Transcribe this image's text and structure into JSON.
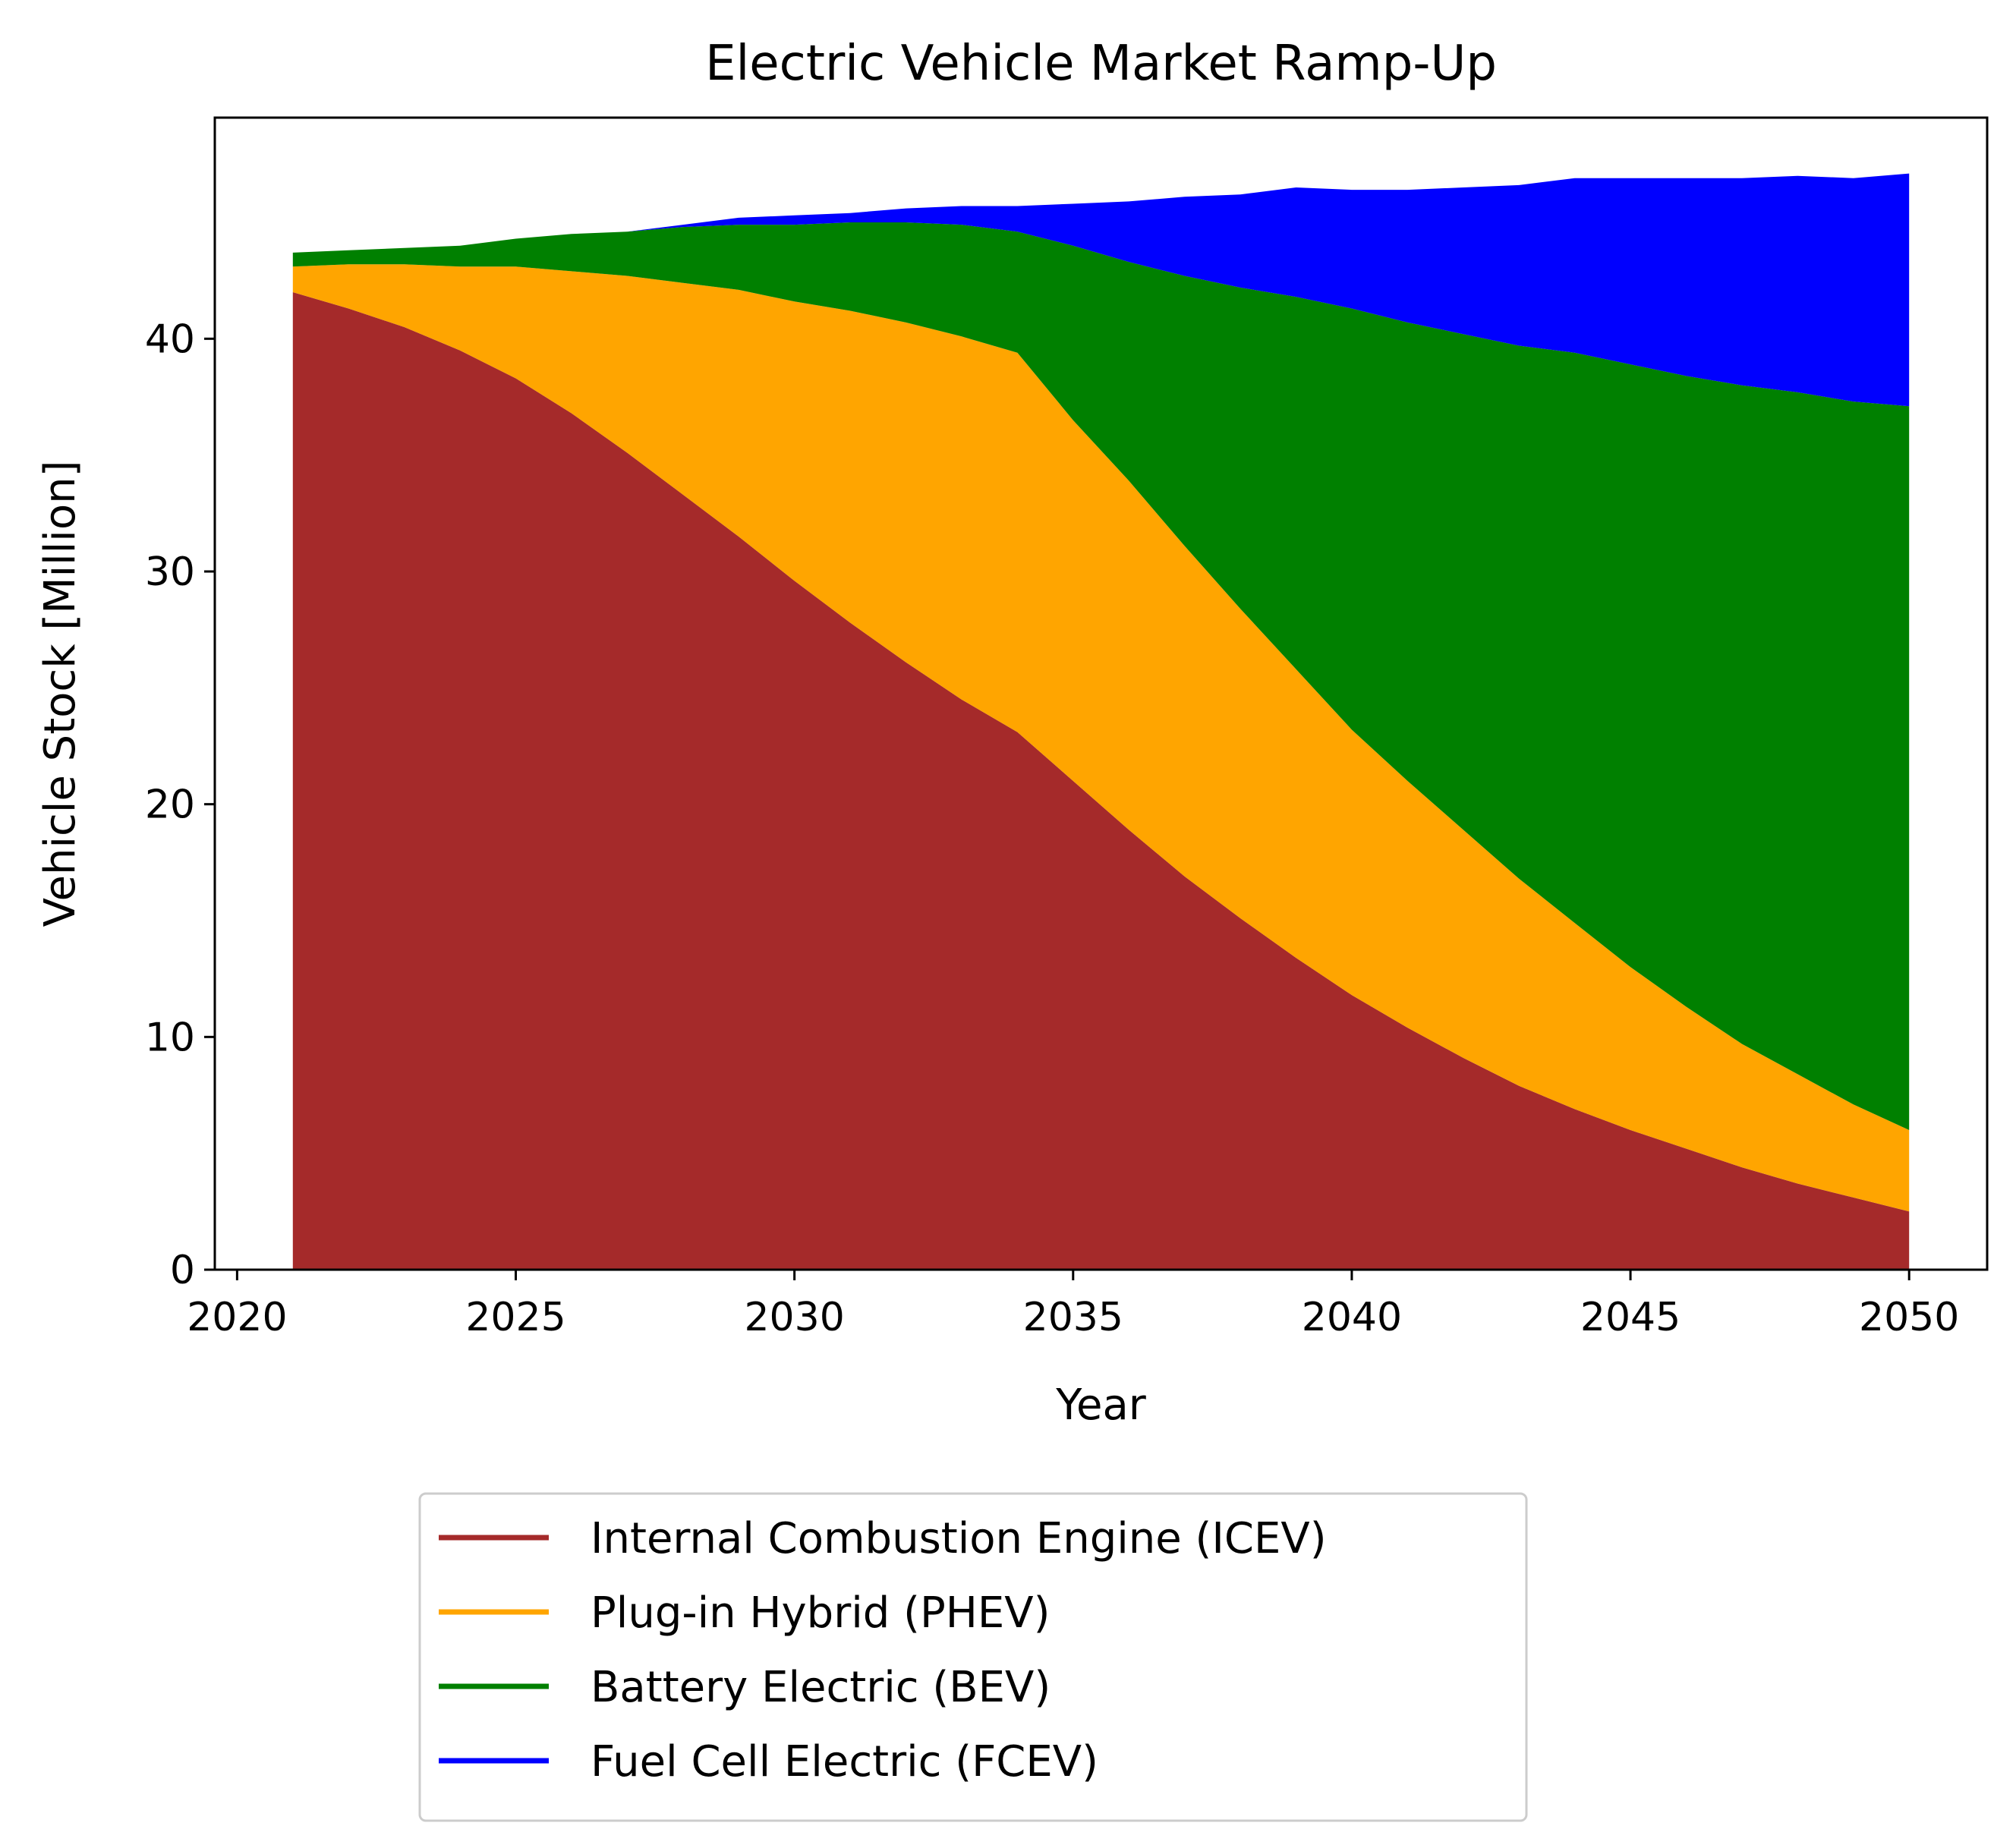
{
  "chart_data": {
    "type": "area",
    "stacked": true,
    "title": "Electric Vehicle Market Ramp-Up",
    "xlabel": "Year",
    "ylabel": "Vehicle Stock [Million]",
    "xlim": [
      2019.6,
      2051.4
    ],
    "ylim": [
      0,
      49.5
    ],
    "x_ticks": [
      2020,
      2025,
      2030,
      2035,
      2040,
      2045,
      2050
    ],
    "y_ticks": [
      0,
      10,
      20,
      30,
      40
    ],
    "grid": false,
    "legend_position": "below plot, centered",
    "x": [
      2021,
      2022,
      2023,
      2024,
      2025,
      2026,
      2027,
      2028,
      2029,
      2030,
      2031,
      2032,
      2033,
      2034,
      2035,
      2036,
      2037,
      2038,
      2039,
      2040,
      2041,
      2042,
      2043,
      2044,
      2045,
      2046,
      2047,
      2048,
      2049,
      2050
    ],
    "series": [
      {
        "name": "Internal Combustion Engine (ICEV)",
        "color": "#a52a2a",
        "values": [
          42.0,
          41.3,
          40.5,
          39.5,
          38.3,
          36.8,
          35.1,
          33.3,
          31.5,
          29.6,
          27.8,
          26.1,
          24.5,
          23.1,
          21.0,
          18.9,
          16.9,
          15.1,
          13.4,
          11.8,
          10.4,
          9.1,
          7.9,
          6.9,
          6.0,
          5.2,
          4.4,
          3.7,
          3.1,
          2.5
        ]
      },
      {
        "name": "Plug-in Hybrid (PHEV)",
        "color": "#ffa500",
        "values": [
          1.1,
          1.9,
          2.7,
          3.6,
          4.8,
          6.1,
          7.6,
          9.1,
          10.6,
          12.0,
          13.4,
          14.6,
          15.6,
          16.3,
          15.5,
          15.0,
          14.2,
          13.3,
          12.4,
          11.4,
          10.6,
          9.8,
          8.9,
          8.0,
          7.0,
          6.1,
          5.3,
          4.7,
          4.0,
          3.5
        ]
      },
      {
        "name": "Battery Electric (BEV)",
        "color": "#008000",
        "values": [
          0.6,
          0.6,
          0.7,
          0.9,
          1.2,
          1.6,
          1.9,
          2.4,
          2.8,
          3.3,
          3.8,
          4.3,
          4.8,
          5.2,
          7.5,
          9.4,
          11.6,
          13.8,
          16.0,
          18.1,
          19.7,
          21.3,
          22.9,
          24.5,
          25.9,
          27.1,
          28.3,
          29.3,
          30.2,
          31.1
        ]
      },
      {
        "name": "Fuel Cell Electric (FCEV)",
        "color": "#0000ff",
        "values": [
          0.0,
          0.0,
          0.0,
          0.0,
          0.0,
          0.0,
          0.0,
          0.1,
          0.3,
          0.4,
          0.4,
          0.6,
          0.8,
          1.1,
          1.8,
          2.6,
          3.4,
          4.0,
          4.7,
          5.1,
          5.7,
          6.3,
          6.9,
          7.5,
          8.0,
          8.5,
          8.9,
          9.3,
          9.6,
          10.0
        ]
      }
    ]
  }
}
